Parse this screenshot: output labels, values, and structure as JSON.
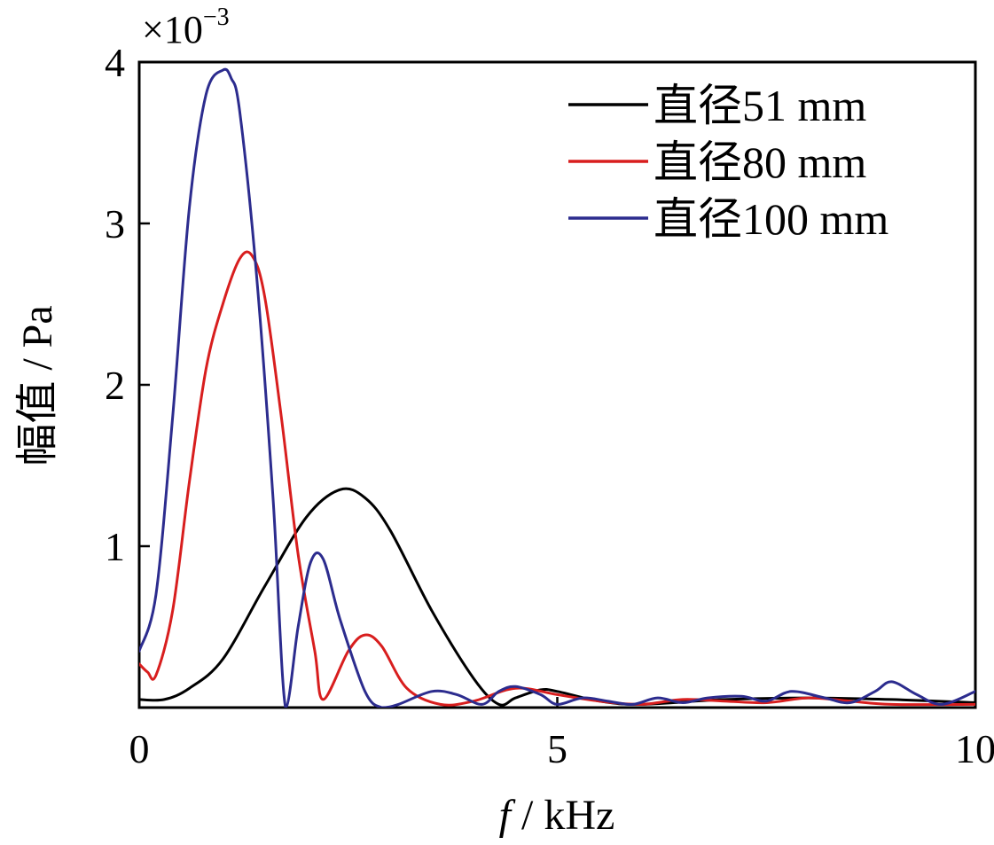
{
  "chart_data": {
    "type": "line",
    "xlabel_var": "f",
    "xlabel_unit": " / kHz",
    "ylabel": "幅值 / Pa",
    "y_scale_factor": "×10",
    "y_scale_exponent": "−3",
    "xlim": [
      0,
      10
    ],
    "ylim": [
      0,
      4
    ],
    "x_ticks": [
      0,
      5,
      10
    ],
    "y_ticks": [
      1,
      2,
      3,
      4
    ],
    "x_tick_labels": [
      "0",
      "5",
      "10"
    ],
    "y_tick_labels": [
      "1",
      "2",
      "3",
      "4"
    ],
    "grid": false,
    "legend_position": "top-right",
    "series": [
      {
        "name": "直径51 mm",
        "color": "#000000",
        "x": [
          0,
          0.3,
          0.6,
          1.0,
          1.5,
          2.0,
          2.4,
          2.7,
          3.0,
          3.5,
          4.0,
          4.3,
          4.5,
          4.8,
          5.0,
          5.5,
          6.0,
          7.0,
          8.0,
          9.0,
          10.0
        ],
        "y": [
          0.05,
          0.05,
          0.12,
          0.3,
          0.75,
          1.18,
          1.35,
          1.3,
          1.1,
          0.6,
          0.18,
          0.02,
          0.06,
          0.11,
          0.1,
          0.04,
          0.02,
          0.05,
          0.06,
          0.05,
          0.03
        ]
      },
      {
        "name": "直径80 mm",
        "color": "#d81e1e",
        "x": [
          0,
          0.1,
          0.2,
          0.4,
          0.6,
          0.8,
          1.0,
          1.2,
          1.35,
          1.5,
          1.7,
          1.9,
          2.1,
          2.2,
          2.5,
          2.7,
          2.9,
          3.2,
          3.6,
          4.0,
          4.5,
          5.0,
          5.5,
          6.0,
          6.5,
          7.0,
          7.5,
          8.0,
          8.5,
          9.0,
          10.0
        ],
        "y": [
          0.27,
          0.22,
          0.2,
          0.6,
          1.4,
          2.1,
          2.5,
          2.78,
          2.8,
          2.55,
          1.8,
          0.95,
          0.35,
          0.05,
          0.35,
          0.45,
          0.38,
          0.12,
          0.02,
          0.04,
          0.12,
          0.08,
          0.04,
          0.02,
          0.05,
          0.04,
          0.03,
          0.06,
          0.04,
          0.02,
          0.02
        ]
      },
      {
        "name": "直径100 mm",
        "color": "#2c2c8e",
        "x": [
          0,
          0.2,
          0.4,
          0.6,
          0.8,
          1.0,
          1.1,
          1.2,
          1.4,
          1.6,
          1.75,
          1.9,
          2.05,
          2.2,
          2.4,
          2.7,
          2.9,
          3.1,
          3.5,
          3.8,
          4.1,
          4.3,
          4.5,
          4.8,
          5.0,
          5.3,
          5.6,
          5.9,
          6.2,
          6.5,
          6.8,
          7.2,
          7.5,
          7.8,
          8.2,
          8.5,
          8.8,
          9.0,
          9.3,
          9.6,
          10.0
        ],
        "y": [
          0.35,
          0.7,
          1.8,
          3.1,
          3.8,
          3.95,
          3.9,
          3.7,
          2.7,
          1.3,
          0.0,
          0.5,
          0.9,
          0.92,
          0.55,
          0.1,
          0.0,
          0.02,
          0.1,
          0.08,
          0.02,
          0.1,
          0.13,
          0.08,
          0.02,
          0.06,
          0.04,
          0.02,
          0.06,
          0.03,
          0.06,
          0.07,
          0.04,
          0.1,
          0.06,
          0.03,
          0.1,
          0.16,
          0.08,
          0.02,
          0.1
        ]
      }
    ]
  }
}
